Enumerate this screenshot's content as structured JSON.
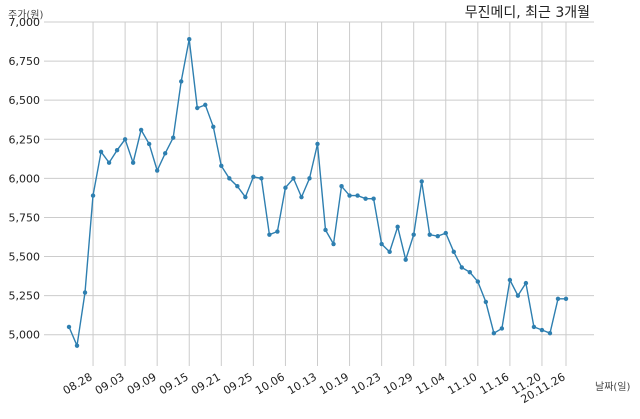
{
  "chart_data": {
    "type": "line",
    "title": "무진메디, 최근 3개월",
    "ylabel": "주가(원)",
    "xlabel": "날짜(일)",
    "ylim": [
      4800,
      7000
    ],
    "yticks": [
      5000,
      5250,
      5500,
      5750,
      6000,
      6250,
      6500,
      6750,
      7000
    ],
    "ytick_labels": [
      "5,000",
      "5,250",
      "5,500",
      "5,750",
      "6,000",
      "6,250",
      "6,500",
      "6,750",
      "7,000"
    ],
    "xtick_labels": [
      "08.28",
      "09.03",
      "09.09",
      "09.15",
      "09.21",
      "09.25",
      "10.06",
      "10.13",
      "10.19",
      "10.23",
      "10.29",
      "11.04",
      "11.10",
      "11.16",
      "11.20",
      "20.11.26"
    ],
    "xtick_index": [
      3,
      7,
      11,
      15,
      19,
      23,
      27,
      31,
      35,
      39,
      43,
      47,
      51,
      55,
      59,
      62
    ],
    "grid": true,
    "colors": {
      "line": "#2e7fb0",
      "grid": "#cccccc"
    },
    "series": [
      {
        "values": [
          5050,
          4930,
          5270,
          5890,
          6170,
          6100,
          6180,
          6250,
          6100,
          6310,
          6220,
          6050,
          6160,
          6260,
          6620,
          6890,
          6450,
          6470,
          6330,
          6080,
          6000,
          5950,
          5880,
          6010,
          6000,
          5640,
          5660,
          5940,
          6000,
          5880,
          6000,
          6220,
          5670,
          5580,
          5950,
          5890,
          5890,
          5870,
          5870,
          5580,
          5530,
          5690,
          5480,
          5640,
          5980,
          5640,
          5630,
          5650,
          5530,
          5430,
          5400,
          5340,
          5210,
          5010,
          5040,
          5350,
          5250,
          5330,
          5050,
          5030,
          5010,
          5230,
          5230
        ]
      }
    ]
  }
}
